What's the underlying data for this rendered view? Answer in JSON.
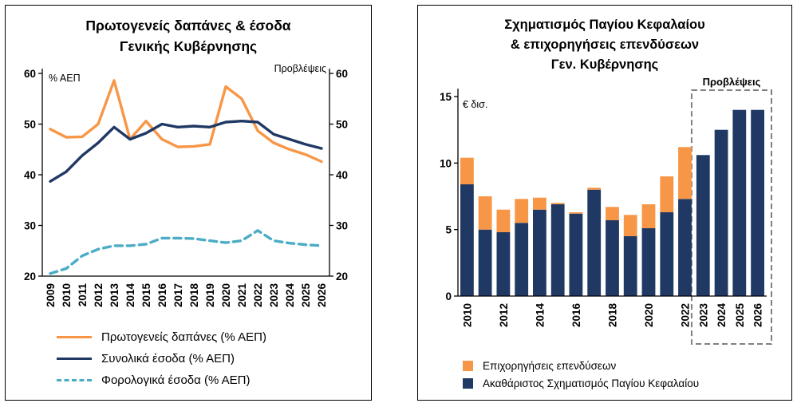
{
  "figure": {
    "background": "#ffffff",
    "panel_border_color": "#000000"
  },
  "colors": {
    "orange": "#F79646",
    "navy": "#1F3864",
    "light_blue": "#4BACC6",
    "forecast_box_gray": "#808080"
  },
  "chart_data": [
    {
      "type": "line",
      "title_lines": [
        "Πρωτογενείς δαπάνες & έσοδα",
        "Γενικής Κυβέρνησης"
      ],
      "ylabel": "% ΑΕΠ",
      "annotation": "Προβλέψεις",
      "x": [
        2009,
        2010,
        2011,
        2012,
        2013,
        2014,
        2015,
        2016,
        2017,
        2018,
        2019,
        2020,
        2021,
        2022,
        2023,
        2024,
        2025,
        2026
      ],
      "ylim": [
        20,
        60
      ],
      "yticks": [
        20,
        30,
        40,
        50,
        60
      ],
      "dual_axis": true,
      "grid": false,
      "legend_position": "bottom",
      "series": [
        {
          "name": "Πρωτογενείς δαπάνες (% ΑΕΠ)",
          "color": "#F79646",
          "style": "solid",
          "values": [
            49,
            47.4,
            47.5,
            50,
            58.6,
            47,
            50.6,
            47,
            45.5,
            45.6,
            46,
            57.4,
            55,
            48.7,
            46.3,
            45,
            44,
            42.6
          ]
        },
        {
          "name": "Συνολικά έσοδα (% ΑΕΠ)",
          "color": "#1F3864",
          "style": "solid",
          "values": [
            38.7,
            40.6,
            43.8,
            46.3,
            49.4,
            47,
            48.2,
            50,
            49.4,
            49.6,
            49.4,
            50.4,
            50.6,
            50.4,
            48,
            47,
            46,
            45.2
          ]
        },
        {
          "name": "Φορολογικά έσοδα (% ΑΕΠ)",
          "color": "#4BACC6",
          "style": "dashed",
          "values": [
            20.5,
            21.5,
            24,
            25.3,
            26,
            26,
            26.3,
            27.5,
            27.5,
            27.4,
            27,
            26.6,
            27,
            29,
            27,
            26.5,
            26.2,
            26
          ]
        }
      ]
    },
    {
      "type": "bar",
      "stacked": true,
      "title_lines": [
        "Σχηματισμός Παγίου Κεφαλαίου",
        "&  επιχορηγήσεις επενδύσεων",
        "Γεν. Κυβέρνησης"
      ],
      "ylabel": "€ δισ.",
      "annotation": "Προβλέψεις",
      "x": [
        2010,
        2011,
        2012,
        2013,
        2014,
        2015,
        2016,
        2017,
        2018,
        2019,
        2020,
        2021,
        2022,
        2023,
        2024,
        2025,
        2026
      ],
      "x_tick_labels": [
        2010,
        2012,
        2014,
        2016,
        2018,
        2020,
        2022,
        2023,
        2024,
        2025,
        2026
      ],
      "ylim": [
        0,
        15
      ],
      "yticks": [
        0,
        5,
        10,
        15
      ],
      "forecast_years": [
        2023,
        2024,
        2025,
        2026
      ],
      "legend_order": [
        1,
        0
      ],
      "series": [
        {
          "name": "Ακαθάριστος Σχηματισμός Παγίου Κεφαλαίου",
          "color": "#1F3864",
          "values": [
            8.4,
            5.0,
            4.8,
            5.5,
            6.5,
            6.9,
            6.2,
            8.0,
            5.7,
            4.5,
            5.1,
            6.3,
            7.3,
            10.6,
            12.5,
            14.0,
            14.0
          ]
        },
        {
          "name": "Επιχορηγήσεις επενδύσεων",
          "color": "#F79646",
          "values": [
            2.0,
            2.5,
            1.7,
            1.8,
            0.9,
            0.1,
            0.1,
            0.15,
            1.0,
            1.6,
            1.8,
            2.7,
            3.9,
            0,
            0,
            0,
            0
          ]
        }
      ]
    }
  ]
}
